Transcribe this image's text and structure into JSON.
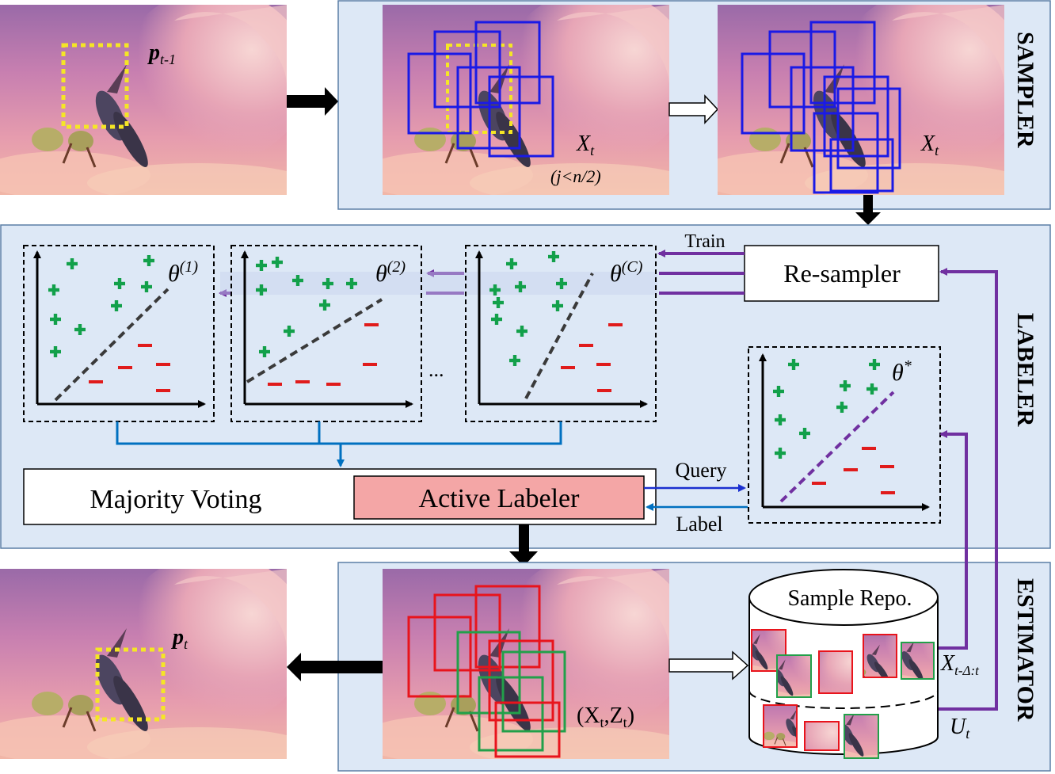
{
  "sections": {
    "sampler": "SAMPLER",
    "labeler": "LABELER",
    "estimator": "ESTIMATOR"
  },
  "sampler": {
    "prev_pose": "p",
    "prev_pose_sub": "t-1",
    "samples_label": "X",
    "samples_sub": "t",
    "condition": "(j<n/2)",
    "samples_label2": "X",
    "samples_sub2": "t"
  },
  "labeler": {
    "train": "Train",
    "resampler": "Re-sampler",
    "theta": "θ",
    "classifier_1_sup": "(1)",
    "classifier_2_sup": "(2)",
    "classifier_c_sup": "(C)",
    "ellipsis": "...",
    "oracle_sup": "*",
    "majority_voting": "Majority Voting",
    "active_labeler": "Active Labeler",
    "query": "Query",
    "label": "Label"
  },
  "estimator": {
    "pose": "p",
    "pose_sub": "t",
    "pair_label": "(X",
    "pair_sub1": "t",
    "pair_mid": ",Z",
    "pair_sub2": "t",
    "pair_end": ")",
    "repo": "Sample Repo.",
    "window_label": "X",
    "window_sub": "t-Δ:t",
    "unlabeled": "U",
    "unlabeled_sub": "t"
  },
  "colors": {
    "panel_bg": "#dde8f6",
    "panel_border": "#5b7fa6",
    "positive": "#12a04a",
    "negative": "#e01b1b",
    "purple_arrow": "#7030a0",
    "blue_arrow": "#0070c0",
    "query_arrow": "#1a2fd0",
    "active_labeler_fill": "#f4a6a6",
    "sample_box": "#1a1ae6",
    "red_box": "#e8141c",
    "green_box": "#22a04a",
    "prev_box": "#f5e625"
  }
}
